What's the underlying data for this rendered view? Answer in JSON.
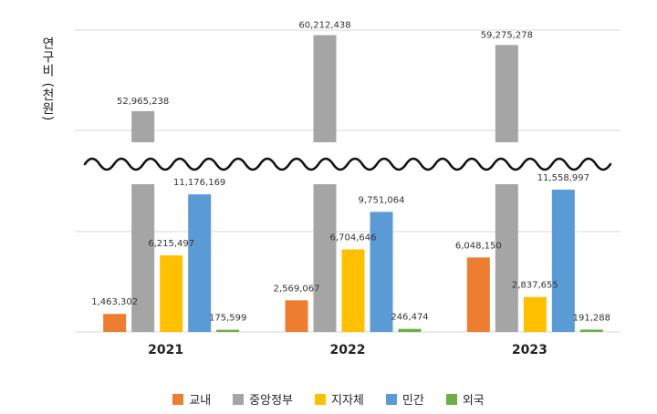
{
  "chart_data": {
    "type": "bar",
    "ylabel": "연구비 (천원)",
    "categories": [
      "2021",
      "2022",
      "2023"
    ],
    "broken_axis": true,
    "series": [
      {
        "name": "교내",
        "color": "#ED7D31",
        "values": [
          1463302,
          2569067,
          6048150
        ],
        "labels": [
          "1,463,302",
          "2,569,067",
          "6,048,150"
        ]
      },
      {
        "name": "중앙정부",
        "color": "#A5A5A5",
        "values": [
          52965238,
          60212438,
          59275278
        ],
        "labels": [
          "52,965,238",
          "60,212,438",
          "59,275,278"
        ]
      },
      {
        "name": "지자체",
        "color": "#FFC000",
        "values": [
          6215497,
          6704646,
          2837655
        ],
        "labels": [
          "6,215,497",
          "6,704,646",
          "2,837,655"
        ]
      },
      {
        "name": "민간",
        "color": "#5B9BD5",
        "values": [
          11176169,
          9751064,
          11558997
        ],
        "labels": [
          "11,176,169",
          "9,751,064",
          "11,558,997"
        ]
      },
      {
        "name": "외국",
        "color": "#70AD47",
        "values": [
          175599,
          246474,
          191288
        ],
        "labels": [
          "175,599",
          "246,474",
          "191,288"
        ]
      }
    ],
    "legend_position": "bottom",
    "grid": true
  }
}
